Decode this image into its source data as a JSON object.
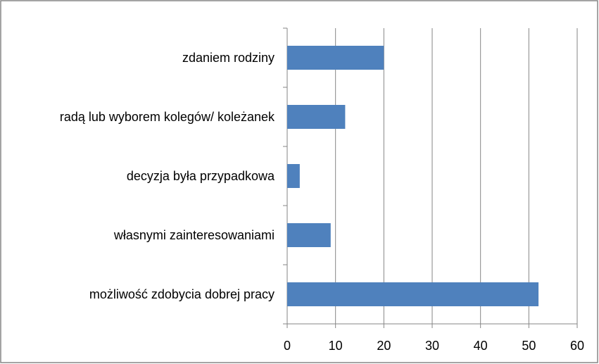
{
  "chart_data": {
    "type": "barh",
    "categories": [
      "zdaniem rodziny",
      "radą lub wyborem kolegów/ koleżanek",
      "decyzja była przypadkowa",
      "własnymi zainteresowaniami",
      "możliwość zdobycia dobrej pracy"
    ],
    "values": [
      20,
      12,
      2.6,
      9,
      52
    ],
    "color": "#4f81bd",
    "xlim": [
      0,
      60
    ],
    "xticks": [
      0,
      10,
      20,
      30,
      40,
      50,
      60
    ],
    "grid": true
  }
}
